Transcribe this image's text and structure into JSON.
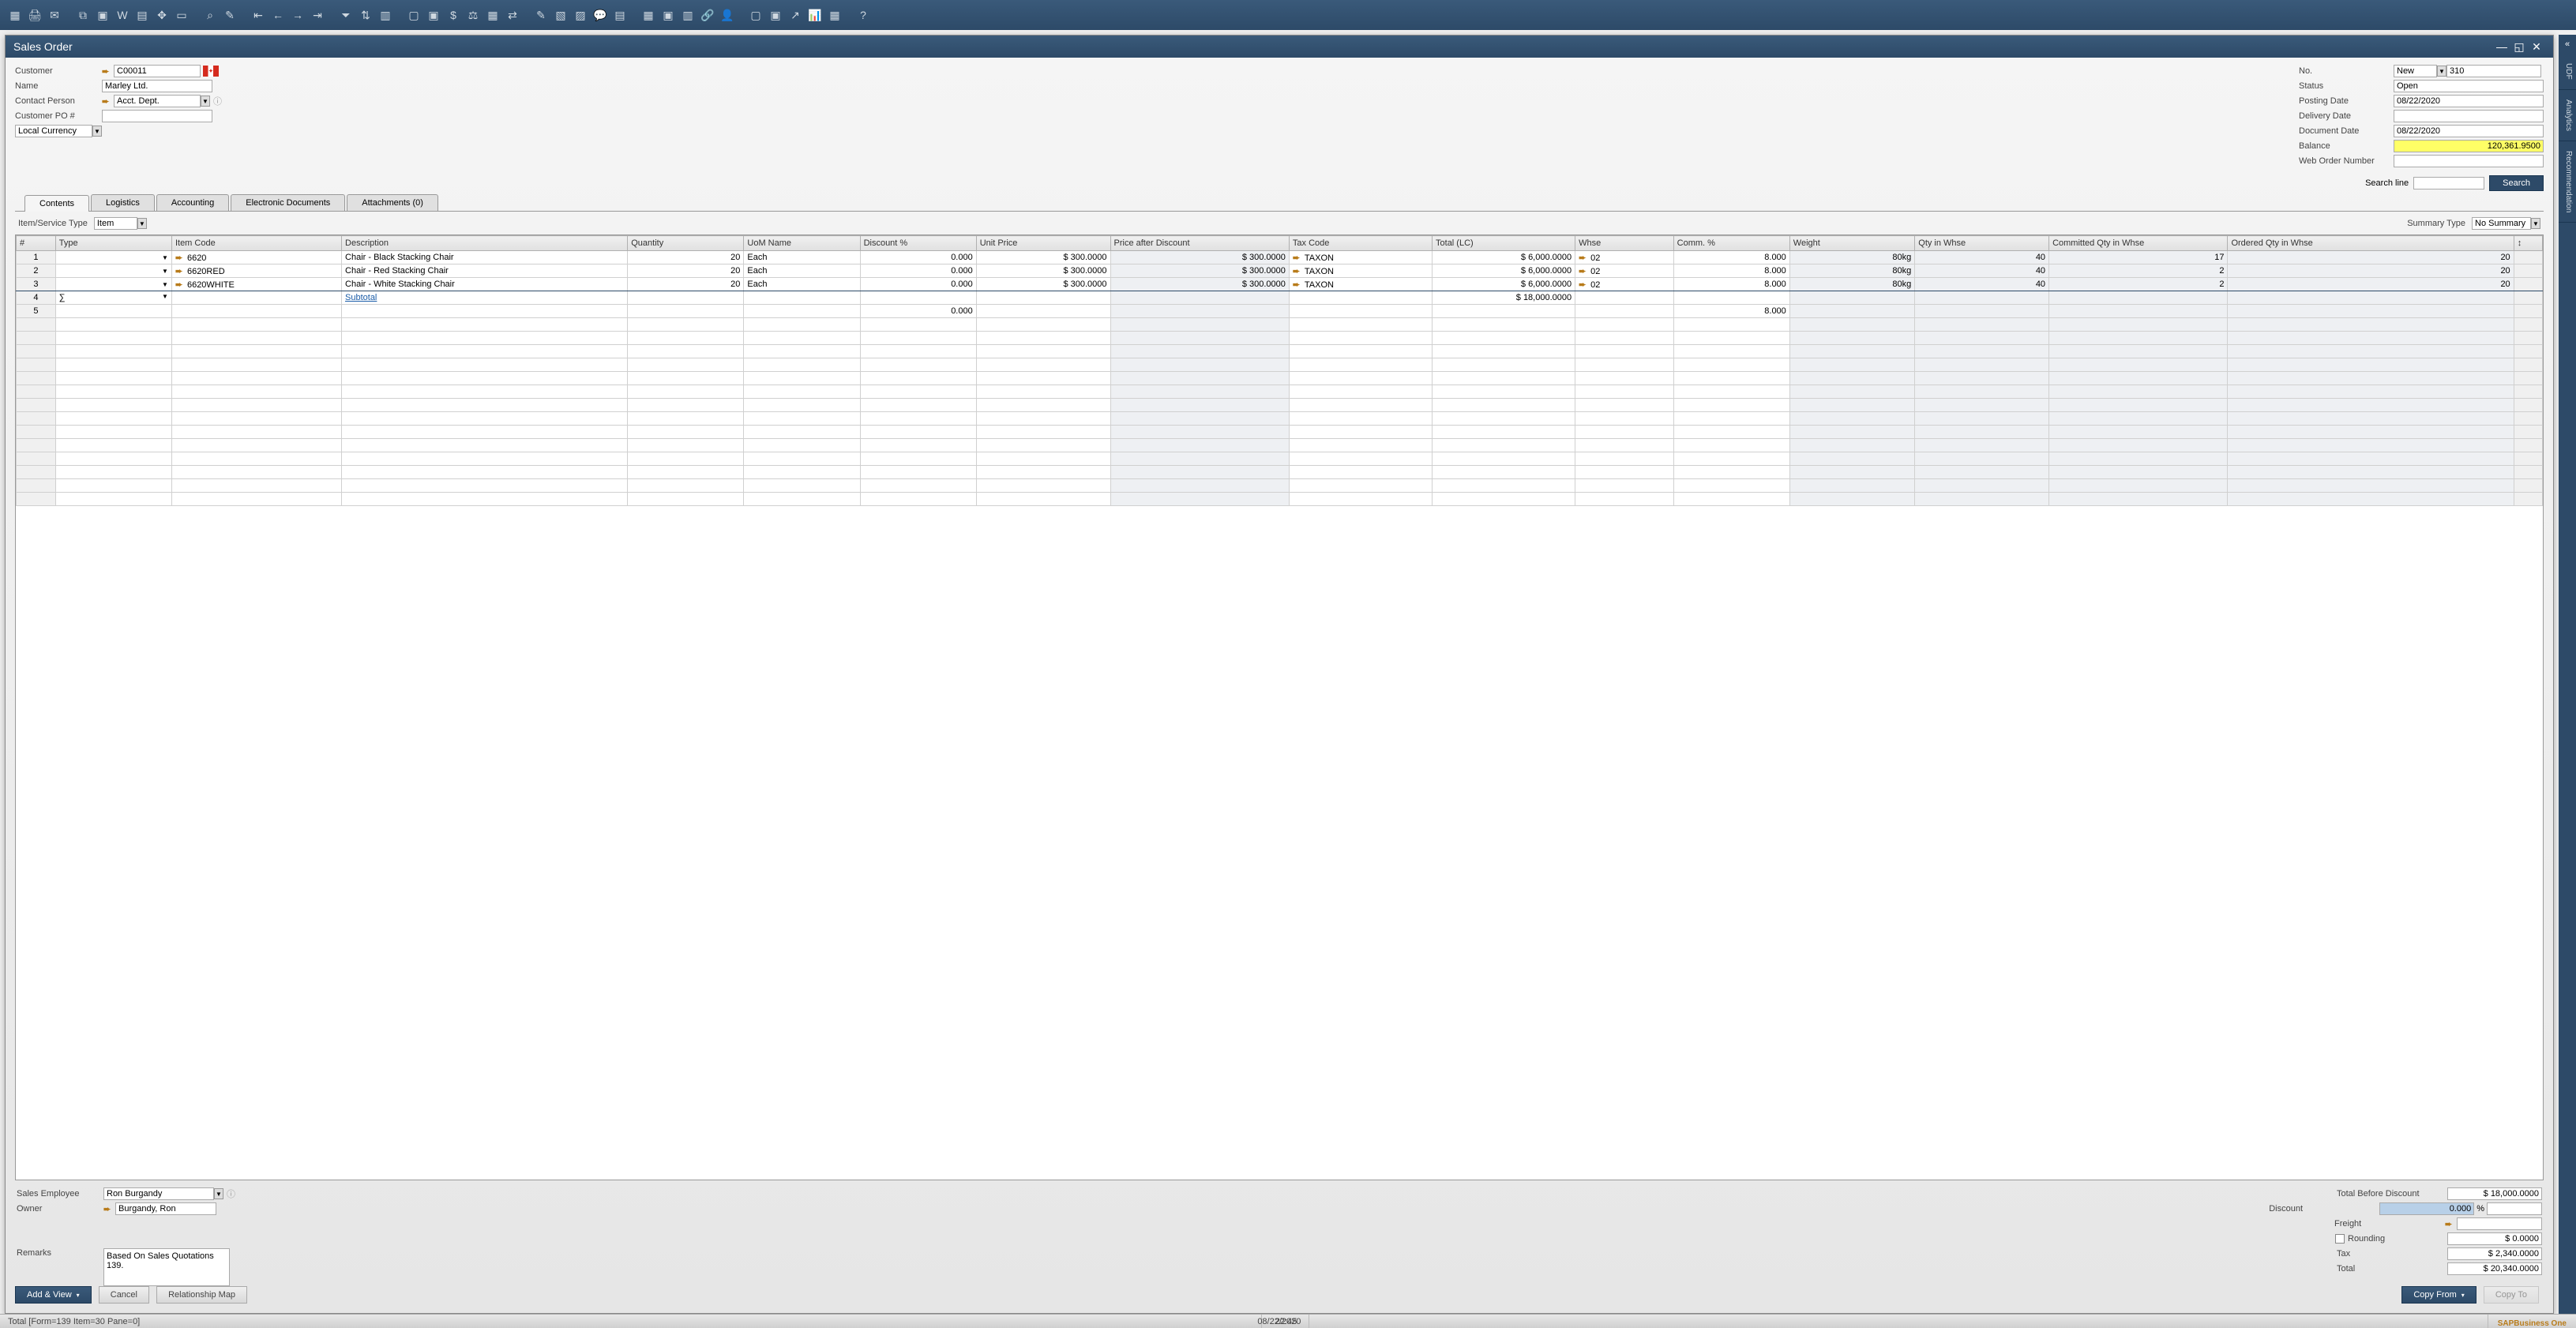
{
  "window": {
    "title": "Sales Order"
  },
  "header_left": {
    "customer_label": "Customer",
    "customer_code": "C00011",
    "name_label": "Name",
    "name_value": "Marley Ltd.",
    "contact_label": "Contact Person",
    "contact_value": "Acct. Dept.",
    "po_label": "Customer PO #",
    "po_value": "",
    "currency_value": "Local Currency"
  },
  "header_right": {
    "no_label": "No.",
    "no_series": "New",
    "no_value": "310",
    "status_label": "Status",
    "status_value": "Open",
    "posting_date_label": "Posting Date",
    "posting_date_value": "08/22/2020",
    "delivery_date_label": "Delivery Date",
    "delivery_date_value": "",
    "document_date_label": "Document Date",
    "document_date_value": "08/22/2020",
    "balance_label": "Balance",
    "balance_value": "120,361.9500",
    "web_order_label": "Web Order Number",
    "web_order_value": ""
  },
  "search": {
    "label": "Search line",
    "placeholder": "",
    "button": "Search"
  },
  "tabs": {
    "contents": "Contents",
    "logistics": "Logistics",
    "accounting": "Accounting",
    "edocs": "Electronic Documents",
    "attachments": "Attachments (0)"
  },
  "subheader": {
    "item_service_label": "Item/Service Type",
    "item_service_value": "Item",
    "summary_type_label": "Summary Type",
    "summary_type_value": "No Summary"
  },
  "grid": {
    "columns": {
      "num": "#",
      "type": "Type",
      "itemcode": "Item Code",
      "description": "Description",
      "quantity": "Quantity",
      "uom": "UoM Name",
      "discount": "Discount %",
      "unitprice": "Unit Price",
      "priceafter": "Price after Discount",
      "taxcode": "Tax Code",
      "total": "Total (LC)",
      "whse": "Whse",
      "comm": "Comm. %",
      "weight": "Weight",
      "qtywhse": "Qty in Whse",
      "committed": "Committed Qty in Whse",
      "ordered": "Ordered Qty in Whse"
    },
    "rows": [
      {
        "num": "1",
        "itemcode": "6620",
        "description": "Chair - Black Stacking Chair",
        "quantity": "20",
        "uom": "Each",
        "discount": "0.000",
        "unitprice": "$ 300.0000",
        "priceafter": "$ 300.0000",
        "taxcode": "TAXON",
        "total": "$ 6,000.0000",
        "whse": "02",
        "comm": "8.000",
        "weight": "80kg",
        "qtywhse": "40",
        "committed": "17",
        "ordered": "20"
      },
      {
        "num": "2",
        "itemcode": "6620RED",
        "description": "Chair - Red Stacking Chair",
        "quantity": "20",
        "uom": "Each",
        "discount": "0.000",
        "unitprice": "$ 300.0000",
        "priceafter": "$ 300.0000",
        "taxcode": "TAXON",
        "total": "$ 6,000.0000",
        "whse": "02",
        "comm": "8.000",
        "weight": "80kg",
        "qtywhse": "40",
        "committed": "2",
        "ordered": "20"
      },
      {
        "num": "3",
        "itemcode": "6620WHITE",
        "description": "Chair - White Stacking Chair",
        "quantity": "20",
        "uom": "Each",
        "discount": "0.000",
        "unitprice": "$ 300.0000",
        "priceafter": "$ 300.0000",
        "taxcode": "TAXON",
        "total": "$ 6,000.0000",
        "whse": "02",
        "comm": "8.000",
        "weight": "80kg",
        "qtywhse": "40",
        "committed": "2",
        "ordered": "20"
      }
    ],
    "subtotal_row": {
      "num": "4",
      "sigma": "∑",
      "label": "Subtotal",
      "total": "$ 18,000.0000"
    },
    "extra_row": {
      "num": "5",
      "discount": "0.000",
      "comm": "8.000"
    }
  },
  "footer_left": {
    "sales_employee_label": "Sales Employee",
    "sales_employee_value": "Ron Burgandy",
    "owner_label": "Owner",
    "owner_value": "Burgandy, Ron",
    "remarks_label": "Remarks",
    "remarks_value": "Based On Sales Quotations 139."
  },
  "footer_right": {
    "total_before_label": "Total Before Discount",
    "total_before_value": "$ 18,000.0000",
    "discount_label": "Discount",
    "discount_pct": "0.000",
    "pct_sign": "%",
    "discount_value": "",
    "freight_label": "Freight",
    "freight_value": "",
    "rounding_label": "Rounding",
    "rounding_value": "$ 0.0000",
    "tax_label": "Tax",
    "tax_value": "$ 2,340.0000",
    "total_label": "Total",
    "total_value": "$ 20,340.0000"
  },
  "actions": {
    "add_view": "Add & View",
    "cancel": "Cancel",
    "relmap": "Relationship Map",
    "copy_from": "Copy From",
    "copy_to": "Copy To"
  },
  "side_tabs": {
    "t1": "UDF",
    "t2": "Analytics",
    "t3": "Recommendation"
  },
  "status": {
    "left": "Total [Form=139 Item=30 Pane=0]",
    "date": "08/22/2020",
    "time": "22:45",
    "logo1": "SAP",
    "logo2": "Business One"
  }
}
